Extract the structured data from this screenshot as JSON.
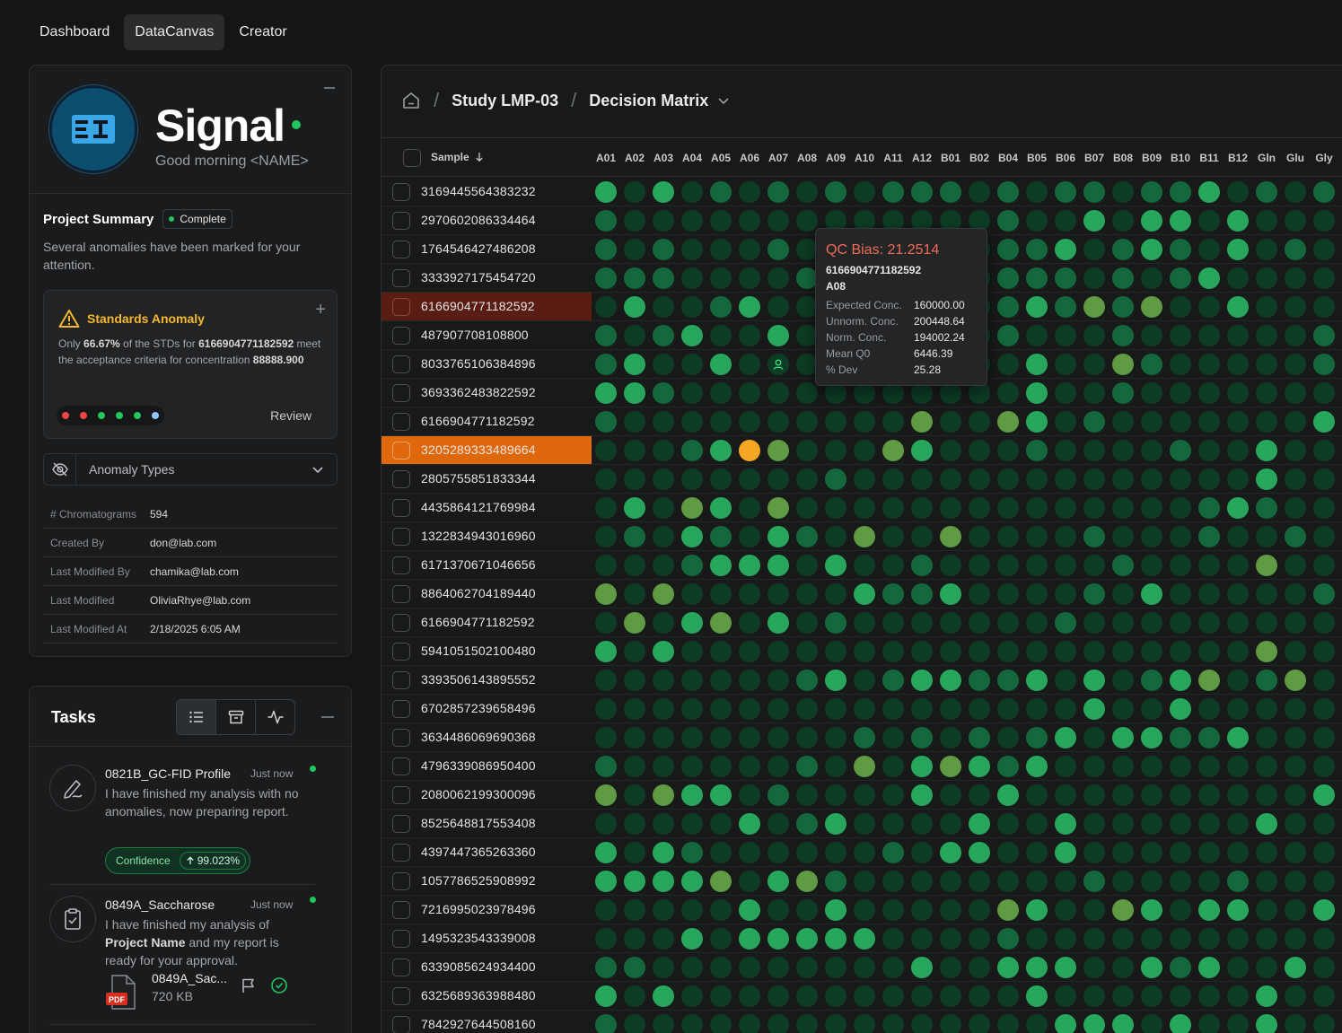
{
  "nav": {
    "tabs": [
      "Dashboard",
      "DataCanvas",
      "Creator"
    ],
    "active": 1
  },
  "signal": {
    "logo_text": "EI",
    "brand": "Signal",
    "greeting": "Good morning <NAME>",
    "summary_title": "Project Summary",
    "status_badge": "Complete",
    "summary_desc": "Several anomalies have been marked for your attention.",
    "anomaly": {
      "title": "Standards Anomaly",
      "body_pre": "Only ",
      "pct": "66.67%",
      "body_mid": " of the STDs for ",
      "sample": "6166904771182592",
      "body_post": " meet the acceptance criteria for concentration ",
      "value": "88888.900",
      "review_label": "Review",
      "dot_colors": [
        "#ef4444",
        "#ef4444",
        "#22c55e",
        "#22c55e",
        "#22c55e",
        "#93c5fd"
      ]
    },
    "types_label": "Anomaly Types",
    "meta": [
      {
        "k": "# Chromatograms",
        "v": "594"
      },
      {
        "k": "Created By",
        "v": "don@lab.com"
      },
      {
        "k": "Last Modified By",
        "v": "chamika@lab.com"
      },
      {
        "k": "Last Modified",
        "v": "OliviaRhye@lab.com"
      },
      {
        "k": "Last Modified At",
        "v": "2/18/2025 6:05 AM"
      }
    ]
  },
  "tasks": {
    "title": "Tasks",
    "items": [
      {
        "name": "0821B_GC-FID Profile",
        "time": "Just now",
        "msg": "I have finished my analysis with no anomalies, now preparing report.",
        "conf_label": "Confidence",
        "conf_value": "99.023%"
      },
      {
        "name": "0849A_Saccharose",
        "time": "Just now",
        "msg_pre": "I have finished my analysis of ",
        "msg_bold": "Project Name",
        "msg_post": " and my report is ready for your approval.",
        "file_name": "0849A_Sac...",
        "file_size": "720 KB",
        "file_type": "PDF"
      }
    ]
  },
  "matrix": {
    "crumb_study": "Study LMP-03",
    "crumb_current": "Decision Matrix",
    "sample_header": "Sample",
    "columns": [
      "A01",
      "A02",
      "A03",
      "A04",
      "A05",
      "A06",
      "A07",
      "A08",
      "A09",
      "A10",
      "A11",
      "A12",
      "B01",
      "B02",
      "B04",
      "B05",
      "B06",
      "B07",
      "B08",
      "B09",
      "B10",
      "B11",
      "B12",
      "Gln",
      "Glu",
      "Gly"
    ],
    "colors": {
      "0": "#0d3d25",
      "1": "#14683d",
      "2": "#1f8f50",
      "3": "#27a75d",
      "4": "#5e9b43",
      "5": "#f5a623",
      "6": "#dc2626"
    },
    "rows": [
      {
        "id": "3169445564383232",
        "state": "",
        "cells": "30301010101110101101130101"
      },
      {
        "id": "2970602086334464",
        "state": "",
        "cells": "10000000000000100303303000"
      },
      {
        "id": "1764546427486208",
        "state": "",
        "cells": "10100010000000113013103010"
      },
      {
        "id": "3333927175454720",
        "state": "",
        "cells": "11100001000000111010130000"
      },
      {
        "id": "6166904771182592",
        "state": "red",
        "cells": "03001300000000131414003000"
      },
      {
        "id": "487907708108800",
        "state": "",
        "cells": "10130030000000100010000001"
      },
      {
        "id": "8033765106384896",
        "state": "",
        "cells": "13003000000000030041000001"
      },
      {
        "id": "3693362483822592",
        "state": "",
        "cells": "33100000000000030010000000"
      },
      {
        "id": "6166904771182592",
        "state": "",
        "cells": "10000000000400430100000003"
      },
      {
        "id": "3205289333489664",
        "state": "orange",
        "cells": "00013540004300010000100300"
      },
      {
        "id": "2805755851833344",
        "state": "",
        "cells": "00000000100000000000000300"
      },
      {
        "id": "4435864121769984",
        "state": "",
        "cells": "03043040000000000000013100"
      },
      {
        "id": "1322834943016960",
        "state": "",
        "cells": "01031031040040000100010010"
      },
      {
        "id": "6171370671046656",
        "state": "",
        "cells": "00013330300100000010000400"
      },
      {
        "id": "8864062704189440",
        "state": "",
        "cells": "40400000031130000103000001"
      },
      {
        "id": "6166904771182592",
        "state": "",
        "cells": "04034030100000001000000000"
      },
      {
        "id": "5941051502100480",
        "state": "",
        "cells": "30300000000000000000000400"
      },
      {
        "id": "3393506143895552",
        "state": "",
        "cells": "00000001301331130301340140"
      },
      {
        "id": "6702857239658496",
        "state": "",
        "cells": "00000000000000000300300000"
      },
      {
        "id": "3634486069690368",
        "state": "",
        "cells": "00000000010101013033113000"
      },
      {
        "id": "4796339086950400",
        "state": "",
        "cells": "10000001040343130000000000"
      },
      {
        "id": "2080062199300096",
        "state": "",
        "cells": "40433010000300300000000003"
      },
      {
        "id": "8525648817553408",
        "state": "",
        "cells": "00000301300003003000000300"
      },
      {
        "id": "4397447365263360",
        "state": "",
        "cells": "30310000001033003000000000"
      },
      {
        "id": "1057786525908992",
        "state": "",
        "cells": "33334034100000000100001000"
      },
      {
        "id": "7216995023978496",
        "state": "",
        "cells": "00000300300000430043033003"
      },
      {
        "id": "1495323543339008",
        "state": "",
        "cells": "00030333330000100000000000"
      },
      {
        "id": "6339085624934400",
        "state": "",
        "cells": "11000000000300333003130030"
      },
      {
        "id": "6325689363988480",
        "state": "",
        "cells": "30300000000000030000000300"
      },
      {
        "id": "7842927644508160",
        "state": "",
        "cells": "10000000000000003330300300"
      }
    ],
    "tooltip": {
      "title": "QC Bias: 21.2514",
      "sample": "6166904771182592",
      "well": "A08",
      "fields": [
        {
          "k": "Expected Conc.",
          "v": "160000.00"
        },
        {
          "k": "Unnorm. Conc.",
          "v": "200448.64"
        },
        {
          "k": "Norm. Conc.",
          "v": "194002.24"
        },
        {
          "k": "Mean Q0",
          "v": "6446.39"
        },
        {
          "k": "% Dev",
          "v": "25.28"
        }
      ]
    }
  }
}
